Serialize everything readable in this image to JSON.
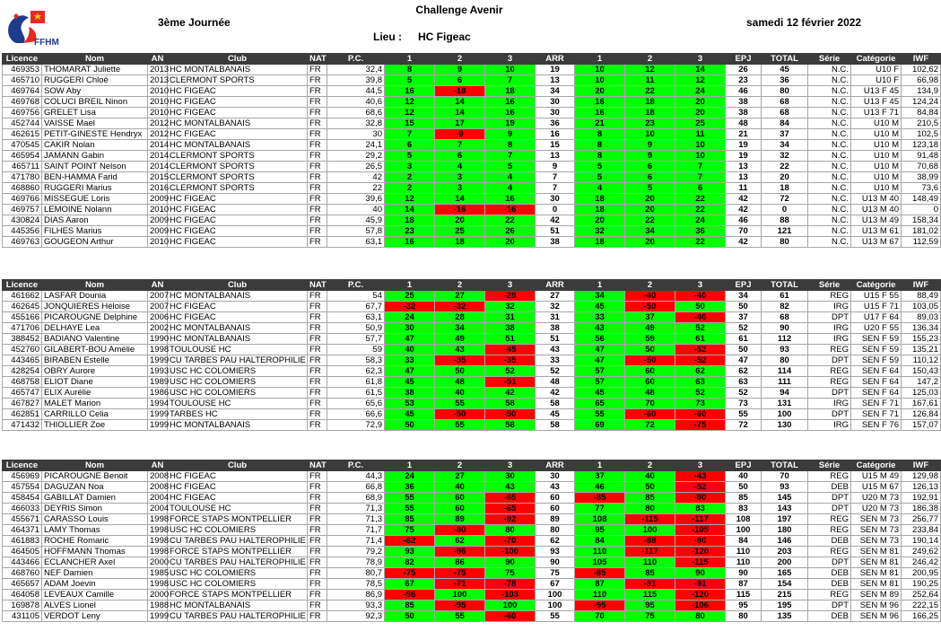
{
  "header": {
    "title": "Challenge Avenir",
    "journee": "3ème Journée",
    "lieu_label": "Lieu :",
    "lieu_value": "HC Figeac",
    "date": "samedi 12 février 2022",
    "logo_text": "FFHM"
  },
  "columns": [
    "Licence",
    "Nom",
    "AN",
    "Club",
    "NAT",
    "P.C.",
    "1",
    "2",
    "3",
    "ARR",
    "1",
    "2",
    "3",
    "EPJ",
    "TOTAL",
    "Série",
    "Catégorie",
    "IWF"
  ],
  "groups": [
    {
      "rows": [
        [
          "469353",
          "THOMARAT Juliette",
          "2013",
          "HC MONTALBANAIS",
          "FR",
          "32,4",
          "8",
          "9",
          "10",
          "19",
          "10",
          "12",
          "14",
          "26",
          "45",
          "N.C.",
          "U10 F",
          "102,62"
        ],
        [
          "465710",
          "RUGGERI Chloé",
          "2013",
          "CLERMONT SPORTS",
          "FR",
          "39,8",
          "5",
          "6",
          "7",
          "13",
          "10",
          "11",
          "12",
          "23",
          "36",
          "N.C.",
          "U10 F",
          "66,98"
        ],
        [
          "469764",
          "SOW Aby",
          "2010",
          "HC FIGEAC",
          "FR",
          "44,5",
          "16",
          "-18",
          "18",
          "34",
          "20",
          "22",
          "24",
          "46",
          "80",
          "N.C.",
          "U13 F 45",
          "134,9"
        ],
        [
          "469768",
          "COLUCI BREIL Ninon",
          "2010",
          "HC FIGEAC",
          "FR",
          "40,6",
          "12",
          "14",
          "16",
          "30",
          "16",
          "18",
          "20",
          "38",
          "68",
          "N.C.",
          "U13 F 45",
          "124,24"
        ],
        [
          "469756",
          "GRELET Lisa",
          "2010",
          "HC FIGEAC",
          "FR",
          "68,6",
          "12",
          "14",
          "16",
          "30",
          "16",
          "18",
          "20",
          "38",
          "68",
          "N.C.",
          "U13 F 71",
          "84,84"
        ],
        [
          "452744",
          "VAISSE Mael",
          "2012",
          "HC MONTALBANAIS",
          "FR",
          "32,8",
          "15",
          "17",
          "19",
          "36",
          "21",
          "23",
          "25",
          "48",
          "84",
          "N.C.",
          "U10 M",
          "210,5"
        ],
        [
          "462615",
          "PETIT-GINESTE Hendryx",
          "2012",
          "HC FIGEAC",
          "FR",
          "30",
          "7",
          "-9",
          "9",
          "16",
          "8",
          "10",
          "11",
          "21",
          "37",
          "N.C.",
          "U10 M",
          "102,5"
        ],
        [
          "470545",
          "CAKIR Nolan",
          "2014",
          "HC MONTALBANAIS",
          "FR",
          "24,1",
          "6",
          "7",
          "8",
          "15",
          "8",
          "9",
          "10",
          "19",
          "34",
          "N.C.",
          "U10 M",
          "123,18"
        ],
        [
          "465954",
          "JAMANN Gabin",
          "2014",
          "CLERMONT SPORTS",
          "FR",
          "29,2",
          "5",
          "6",
          "7",
          "13",
          "8",
          "9",
          "10",
          "19",
          "32",
          "N.C.",
          "U10 M",
          "91,48"
        ],
        [
          "465711",
          "SAINT POINT Nelson",
          "2014",
          "CLERMONT SPORTS",
          "FR",
          "26,5",
          "3",
          "4",
          "5",
          "9",
          "5",
          "6",
          "7",
          "13",
          "22",
          "N.C.",
          "U10 M",
          "70,68"
        ],
        [
          "471780",
          "BEN-HAMMA Farid",
          "2015",
          "CLERMONT SPORTS",
          "FR",
          "42",
          "2",
          "3",
          "4",
          "7",
          "5",
          "6",
          "7",
          "13",
          "20",
          "N.C.",
          "U10 M",
          "38,99"
        ],
        [
          "468860",
          "RUGGERI Marius",
          "2016",
          "CLERMONT SPORTS",
          "FR",
          "22",
          "2",
          "3",
          "4",
          "7",
          "4",
          "5",
          "6",
          "11",
          "18",
          "N.C.",
          "U10 M",
          "73,6"
        ],
        [
          "469766",
          "MISSEGUE Loris",
          "2009",
          "HC FIGEAC",
          "FR",
          "39,6",
          "12",
          "14",
          "16",
          "30",
          "18",
          "20",
          "22",
          "42",
          "72",
          "N.C.",
          "U13 M 40",
          "148,49"
        ],
        [
          "469757",
          "LEMOINE Nolann",
          "2010",
          "HC FIGEAC",
          "FR",
          "40",
          "14",
          "-16",
          "-16",
          "0",
          "18",
          "20",
          "22",
          "42",
          "0",
          "N.C.",
          "U13 M 40",
          "0"
        ],
        [
          "430824",
          "DIAS Aaron",
          "2009",
          "HC FIGEAC",
          "FR",
          "45,9",
          "18",
          "20",
          "22",
          "42",
          "20",
          "22",
          "24",
          "46",
          "88",
          "N.C.",
          "U13 M 49",
          "158,34"
        ],
        [
          "445356",
          "FILHES Marius",
          "2009",
          "HC FIGEAC",
          "FR",
          "57,8",
          "23",
          "25",
          "26",
          "51",
          "32",
          "34",
          "36",
          "70",
          "121",
          "N.C.",
          "U13 M 61",
          "181,02"
        ],
        [
          "469763",
          "GOUGEON Arthur",
          "2010",
          "HC FIGEAC",
          "FR",
          "63,1",
          "16",
          "18",
          "20",
          "38",
          "18",
          "20",
          "22",
          "42",
          "80",
          "N.C.",
          "U13 M 67",
          "112,59"
        ]
      ]
    },
    {
      "rows": [
        [
          "461662",
          "LASFAR Dounia",
          "2007",
          "HC MONTALBANAIS",
          "FR",
          "54",
          "25",
          "27",
          "-29",
          "27",
          "34",
          "-40",
          "-40",
          "34",
          "61",
          "REG",
          "U15 F 55",
          "88,49"
        ],
        [
          "462645",
          "JONQUIERES Héloise",
          "2007",
          "HC FIGEAC",
          "FR",
          "67,7",
          "-32",
          "-32",
          "32",
          "32",
          "45",
          "-50",
          "50",
          "50",
          "82",
          "IRG",
          "U15 F 71",
          "103,05"
        ],
        [
          "455166",
          "PICAROUGNE Delphine",
          "2006",
          "HC FIGEAC",
          "FR",
          "63,1",
          "24",
          "28",
          "31",
          "31",
          "33",
          "37",
          "-40",
          "37",
          "68",
          "DPT",
          "U17 F 64",
          "89,03"
        ],
        [
          "471706",
          "DELHAYE Lea",
          "2002",
          "HC MONTALBANAIS",
          "FR",
          "50,9",
          "30",
          "34",
          "38",
          "38",
          "43",
          "49",
          "52",
          "52",
          "90",
          "IRG",
          "U20 F 55",
          "136,34"
        ],
        [
          "388452",
          "BADIANO Valentine",
          "1990",
          "HC MONTALBANAIS",
          "FR",
          "57,7",
          "47",
          "49",
          "51",
          "51",
          "56",
          "59",
          "61",
          "61",
          "112",
          "IRG",
          "SEN F 59",
          "155,23"
        ],
        [
          "452760",
          "GILABERT-BOU Amélie",
          "1998",
          "TOULOUSE HC",
          "FR",
          "59",
          "40",
          "43",
          "-45",
          "43",
          "47",
          "50",
          "-52",
          "50",
          "93",
          "REG",
          "SEN F 59",
          "135,21"
        ],
        [
          "443465",
          "BIRABEN Estelle",
          "1999",
          "CU TARBES PAU HALTEROPHILIE",
          "FR",
          "58,3",
          "33",
          "-35",
          "-35",
          "33",
          "47",
          "-50",
          "-52",
          "47",
          "80",
          "DPT",
          "SEN F 59",
          "110,12"
        ],
        [
          "428254",
          "OBRY Aurore",
          "1993",
          "USC HC COLOMIERS",
          "FR",
          "62,3",
          "47",
          "50",
          "52",
          "52",
          "57",
          "60",
          "62",
          "62",
          "114",
          "REG",
          "SEN F 64",
          "150,43"
        ],
        [
          "468758",
          "ELIOT Diane",
          "1989",
          "USC HC COLOMIERS",
          "FR",
          "61,8",
          "45",
          "48",
          "-51",
          "48",
          "57",
          "60",
          "63",
          "63",
          "111",
          "REG",
          "SEN F 64",
          "147,2"
        ],
        [
          "465747",
          "ELIX Aurélie",
          "1986",
          "USC HC COLOMIERS",
          "FR",
          "61,5",
          "38",
          "40",
          "42",
          "42",
          "45",
          "48",
          "52",
          "52",
          "94",
          "DPT",
          "SEN F 64",
          "125,03"
        ],
        [
          "467827",
          "MALET Marion",
          "1994",
          "TOULOUSE HC",
          "FR",
          "65,6",
          "53",
          "55",
          "58",
          "58",
          "65",
          "70",
          "73",
          "73",
          "131",
          "IRG",
          "SEN F 71",
          "167,61"
        ],
        [
          "462851",
          "CARRILLO Celia",
          "1999",
          "TARBES HC",
          "FR",
          "66,6",
          "45",
          "-50",
          "-50",
          "45",
          "55",
          "-60",
          "-60",
          "55",
          "100",
          "DPT",
          "SEN F 71",
          "126,84"
        ],
        [
          "471432",
          "THIOLLIER Zoe",
          "1999",
          "HC MONTALBANAIS",
          "FR",
          "72,9",
          "50",
          "55",
          "58",
          "58",
          "69",
          "72",
          "-75",
          "72",
          "130",
          "IRG",
          "SEN F 76",
          "157,07"
        ]
      ]
    },
    {
      "rows": [
        [
          "456969",
          "PICAROUGNE Benoit",
          "2008",
          "HC FIGEAC",
          "FR",
          "44,3",
          "24",
          "27",
          "30",
          "30",
          "37",
          "40",
          "-43",
          "40",
          "70",
          "REG",
          "U15 M 49",
          "129,98"
        ],
        [
          "457554",
          "DAGUZAN Noa",
          "2008",
          "HC FIGEAC",
          "FR",
          "66,8",
          "36",
          "40",
          "43",
          "43",
          "46",
          "50",
          "-52",
          "50",
          "93",
          "DEB",
          "U15 M 67",
          "126,13"
        ],
        [
          "458454",
          "GABILLAT Damien",
          "2004",
          "HC FIGEAC",
          "FR",
          "68,9",
          "55",
          "60",
          "-65",
          "60",
          "-85",
          "85",
          "-90",
          "85",
          "145",
          "DPT",
          "U20 M 73",
          "192,91"
        ],
        [
          "466033",
          "DEYRIS Simon",
          "2004",
          "TOULOUSE HC",
          "FR",
          "71,3",
          "55",
          "60",
          "-65",
          "60",
          "77",
          "80",
          "83",
          "83",
          "143",
          "DPT",
          "U20 M 73",
          "186,38"
        ],
        [
          "455671",
          "CARASSO Louis",
          "1998",
          "FORCE STAPS MONTPELLIER",
          "FR",
          "71,3",
          "85",
          "89",
          "-92",
          "89",
          "108",
          "-115",
          "-117",
          "108",
          "197",
          "REG",
          "SEN M 73",
          "256,77"
        ],
        [
          "464371",
          "LAMY Thomas",
          "1998",
          "USC HC COLOMIERS",
          "FR",
          "71,7",
          "75",
          "-80",
          "80",
          "80",
          "95",
          "100",
          "-105",
          "100",
          "180",
          "REG",
          "SEN M 73",
          "233,84"
        ],
        [
          "461883",
          "ROCHE Romaric",
          "1998",
          "CU TARBES PAU HALTEROPHILIE",
          "FR",
          "71,4",
          "-62",
          "62",
          "-70",
          "62",
          "84",
          "-88",
          "-90",
          "84",
          "146",
          "DEB",
          "SEN M 73",
          "190,14"
        ],
        [
          "464505",
          "HOFFMANN Thomas",
          "1998",
          "FORCE STAPS MONTPELLIER",
          "FR",
          "79,2",
          "93",
          "-96",
          "-100",
          "93",
          "110",
          "-117",
          "-120",
          "110",
          "203",
          "REG",
          "SEN M 81",
          "249,62"
        ],
        [
          "443466",
          "ECLANCHER Axel",
          "2000",
          "CU TARBES PAU HALTEROPHILIE",
          "FR",
          "78,9",
          "82",
          "86",
          "90",
          "90",
          "105",
          "110",
          "-115",
          "110",
          "200",
          "DPT",
          "SEN M 81",
          "246,42"
        ],
        [
          "468760",
          "NEF Damien",
          "1985",
          "USC HC COLOMIERS",
          "FR",
          "80,7",
          "-75",
          "-75",
          "75",
          "75",
          "-85",
          "85",
          "90",
          "90",
          "165",
          "DEB",
          "SEN M 81",
          "200,95"
        ],
        [
          "465657",
          "ADAM Joevin",
          "1998",
          "USC HC COLOMIERS",
          "FR",
          "78,5",
          "67",
          "-71",
          "-78",
          "67",
          "87",
          "-91",
          "-91",
          "87",
          "154",
          "DEB",
          "SEN M 81",
          "190,25"
        ],
        [
          "464058",
          "LEVEAUX Camille",
          "2000",
          "FORCE STAPS MONTPELLIER",
          "FR",
          "86,9",
          "-96",
          "100",
          "-103",
          "100",
          "110",
          "115",
          "-120",
          "115",
          "215",
          "REG",
          "SEN M 89",
          "252,64"
        ],
        [
          "169878",
          "ALVES Lionel",
          "1988",
          "HC MONTALBANAIS",
          "FR",
          "93,3",
          "85",
          "-95",
          "100",
          "100",
          "-95",
          "95",
          "-106",
          "95",
          "195",
          "DPT",
          "SEN M 96",
          "222,15"
        ],
        [
          "431105",
          "VERDOT Leny",
          "1999",
          "CU TARBES PAU HALTEROPHILIE",
          "FR",
          "92,3",
          "50",
          "55",
          "-60",
          "55",
          "70",
          "75",
          "80",
          "80",
          "135",
          "DEB",
          "SEN M 96",
          "166,25"
        ]
      ]
    }
  ]
}
